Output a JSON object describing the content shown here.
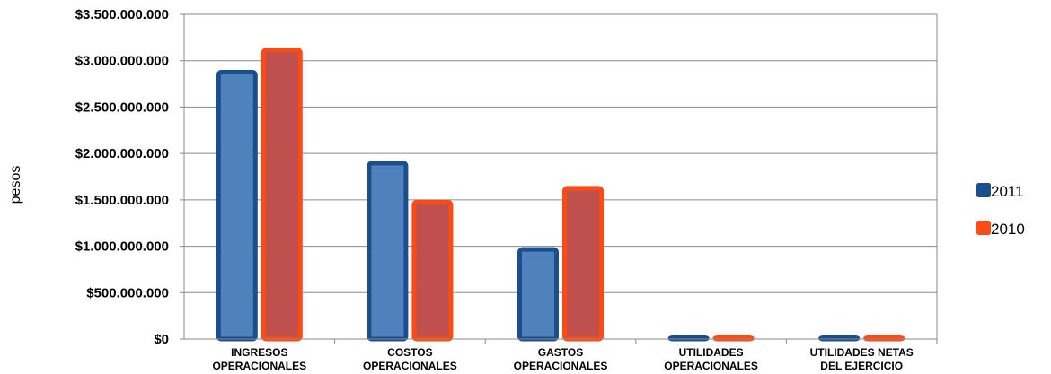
{
  "chart_data": {
    "type": "bar",
    "ylabel": "pesos",
    "ylim": [
      0,
      3500000000
    ],
    "ytick_step": 500000000,
    "yticks": [
      "$0",
      "$500.000.000",
      "$1.000.000.000",
      "$1.500.000.000",
      "$2.000.000.000",
      "$2.500.000.000",
      "$3.000.000.000",
      "$3.500.000.000"
    ],
    "categories": [
      [
        "INGRESOS",
        "OPERACIONALES"
      ],
      [
        "COSTOS",
        "OPERACIONALES"
      ],
      [
        "GASTOS",
        "OPERACIONALES"
      ],
      [
        "UTILIDADES",
        "OPERACIONALES"
      ],
      [
        "UTILIDADES NETAS",
        "DEL EJERCICIO"
      ]
    ],
    "series": [
      {
        "name": "2011",
        "values": [
          2900000000,
          1920000000,
          990000000,
          30000000,
          30000000
        ],
        "border": "#1a4f8c",
        "fill": "#4f81bd"
      },
      {
        "name": "2010",
        "values": [
          3140000000,
          1500000000,
          1650000000,
          30000000,
          30000000
        ],
        "border": "#ff4a14",
        "fill": "#c0504d"
      }
    ],
    "grid": true,
    "legend_position": "right"
  }
}
